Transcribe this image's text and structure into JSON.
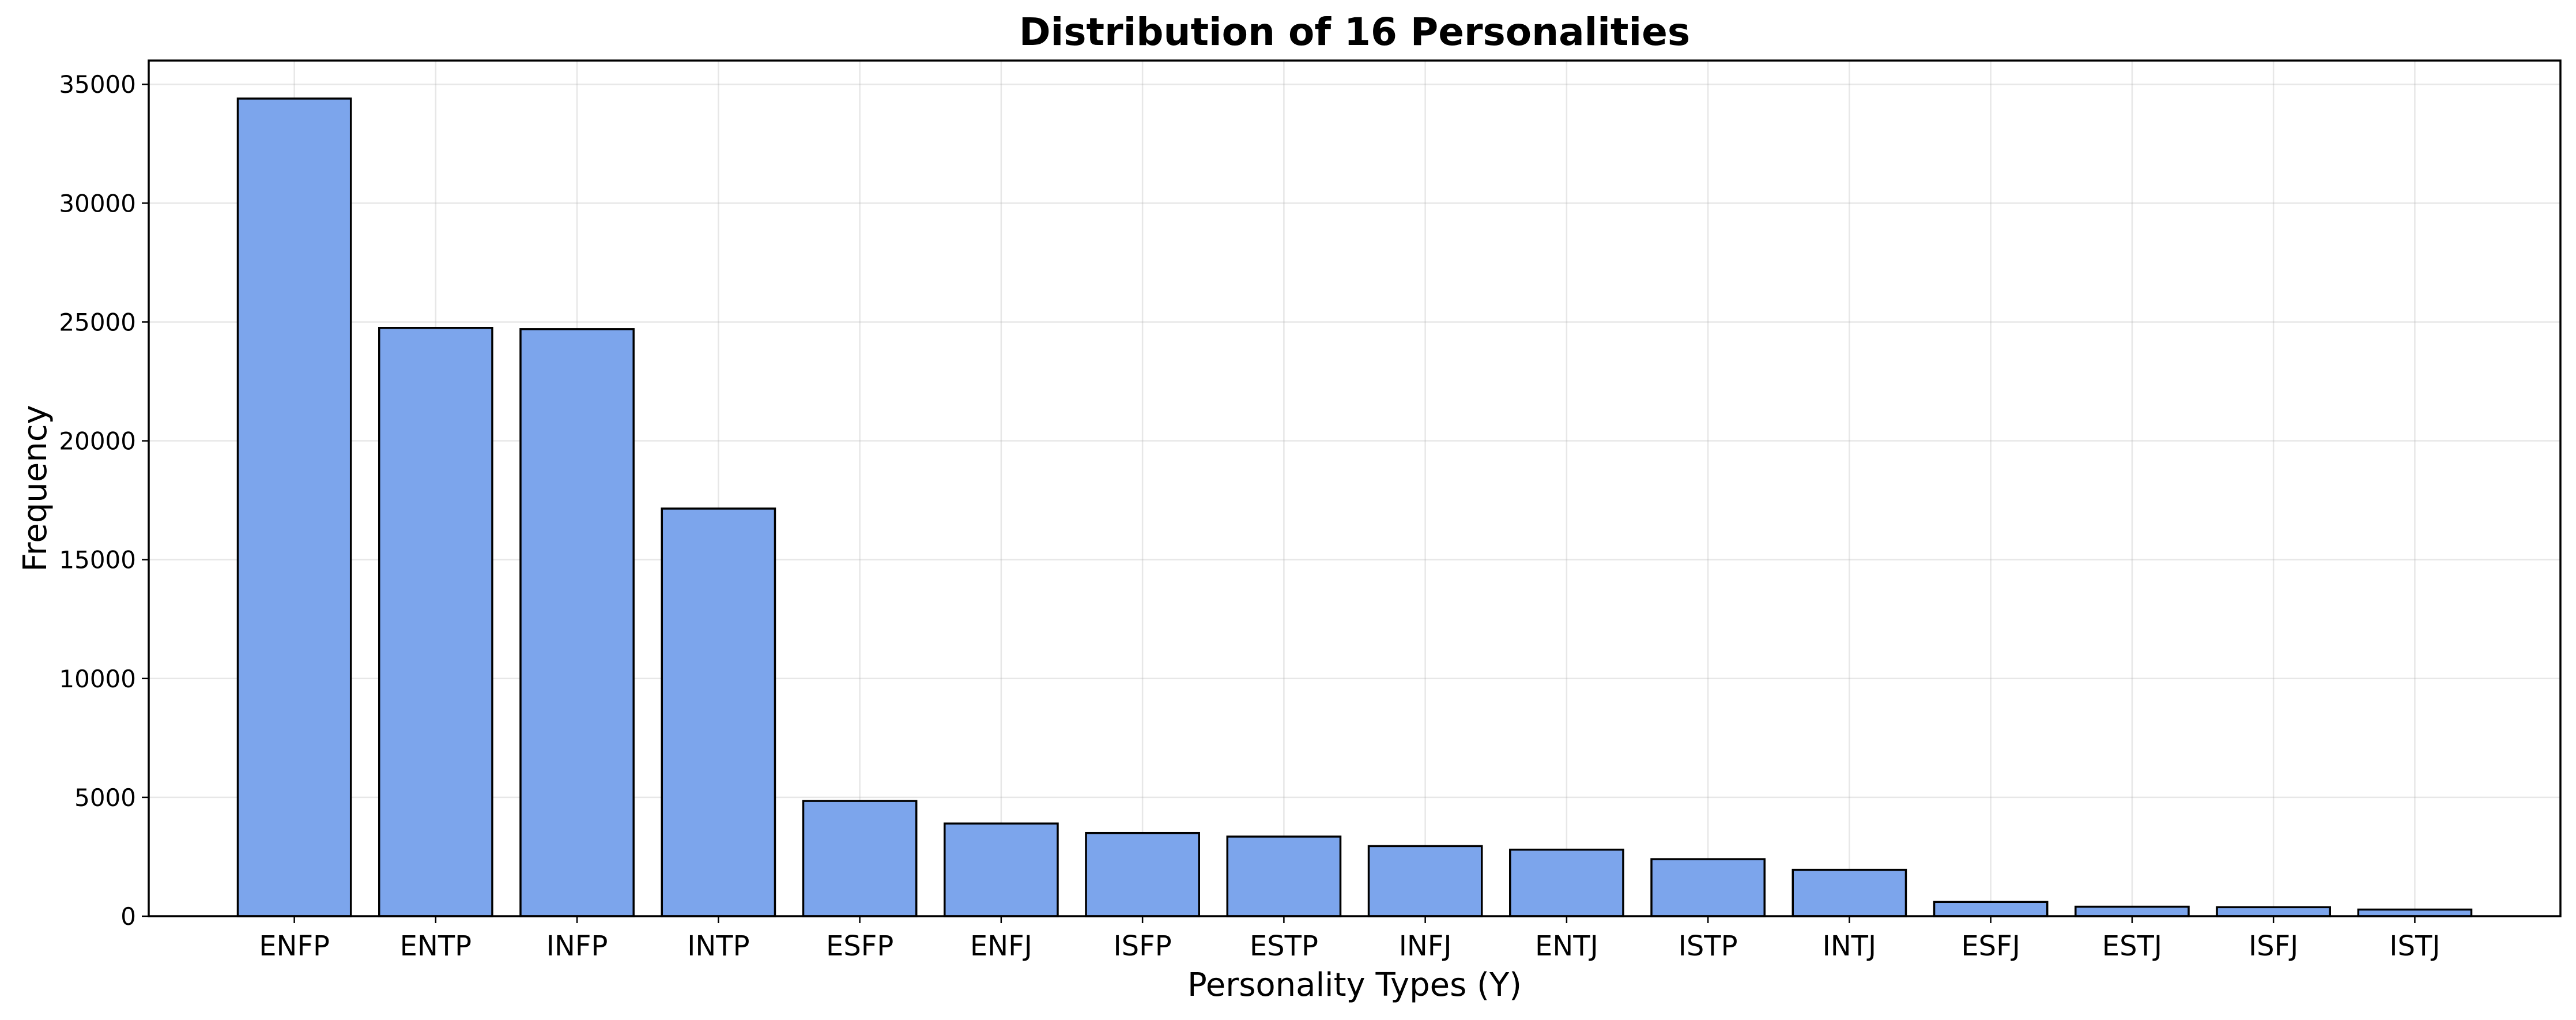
{
  "chart_data": {
    "type": "bar",
    "title": "Distribution of 16 Personalities",
    "xlabel": "Personality Types (Y)",
    "ylabel": "Frequency",
    "categories": [
      "ENFP",
      "ENTP",
      "INFP",
      "INTP",
      "ESFP",
      "ENFJ",
      "ISFP",
      "ESTP",
      "INFJ",
      "ENTJ",
      "ISTP",
      "INTJ",
      "ESFJ",
      "ESTJ",
      "ISFJ",
      "ISTJ"
    ],
    "values": [
      34400,
      24750,
      24700,
      17150,
      4850,
      3900,
      3500,
      3350,
      2950,
      2800,
      2400,
      1950,
      600,
      400,
      380,
      280
    ],
    "ylim": [
      0,
      36000
    ],
    "yticks": [
      0,
      5000,
      10000,
      15000,
      20000,
      25000,
      30000,
      35000
    ],
    "grid": true,
    "legend": "none",
    "colors": {
      "bar_fill": "#7ca5ec",
      "bar_edge": "#000000"
    }
  }
}
